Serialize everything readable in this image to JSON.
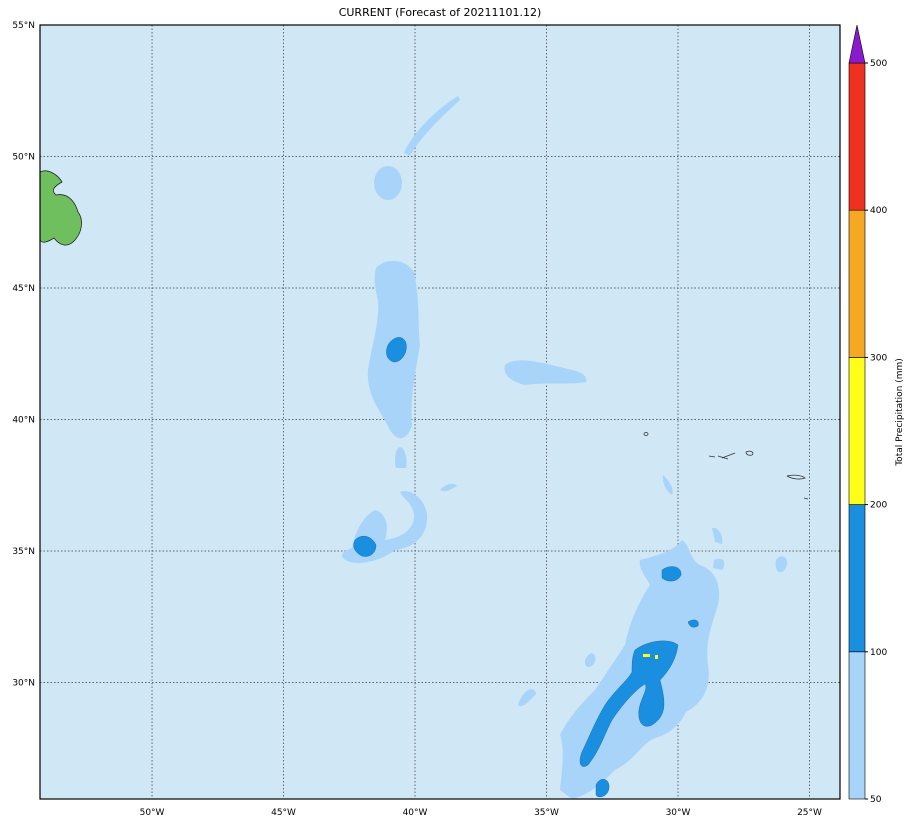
{
  "title": "CURRENT (Forecast of 20211101.12)",
  "map": {
    "xlim": [
      -54.26,
      -23.84
    ],
    "ylim": [
      25.57,
      55
    ],
    "lat_ticks": [
      {
        "value": 55,
        "label": "55°N"
      },
      {
        "value": 50,
        "label": "50°N"
      },
      {
        "value": 45,
        "label": "45°N"
      },
      {
        "value": 40,
        "label": "40°N"
      },
      {
        "value": 35,
        "label": "35°N"
      },
      {
        "value": 30,
        "label": "30°N"
      }
    ],
    "lon_ticks": [
      {
        "value": -50,
        "label": "50°W"
      },
      {
        "value": -45,
        "label": "45°W"
      },
      {
        "value": -40,
        "label": "40°W"
      },
      {
        "value": -35,
        "label": "35°W"
      },
      {
        "value": -30,
        "label": "30°W"
      },
      {
        "value": -25,
        "label": "25°W"
      }
    ]
  },
  "colorbar": {
    "label": "Total Precipitation (mm)",
    "ticks": [
      50,
      100,
      200,
      300,
      400,
      500
    ],
    "colors": [
      "#a9d4fa",
      "#1a8fdf",
      "#ffff1a",
      "#f7a823",
      "#ef3120"
    ],
    "extend_color": "#8a1ad0"
  }
}
